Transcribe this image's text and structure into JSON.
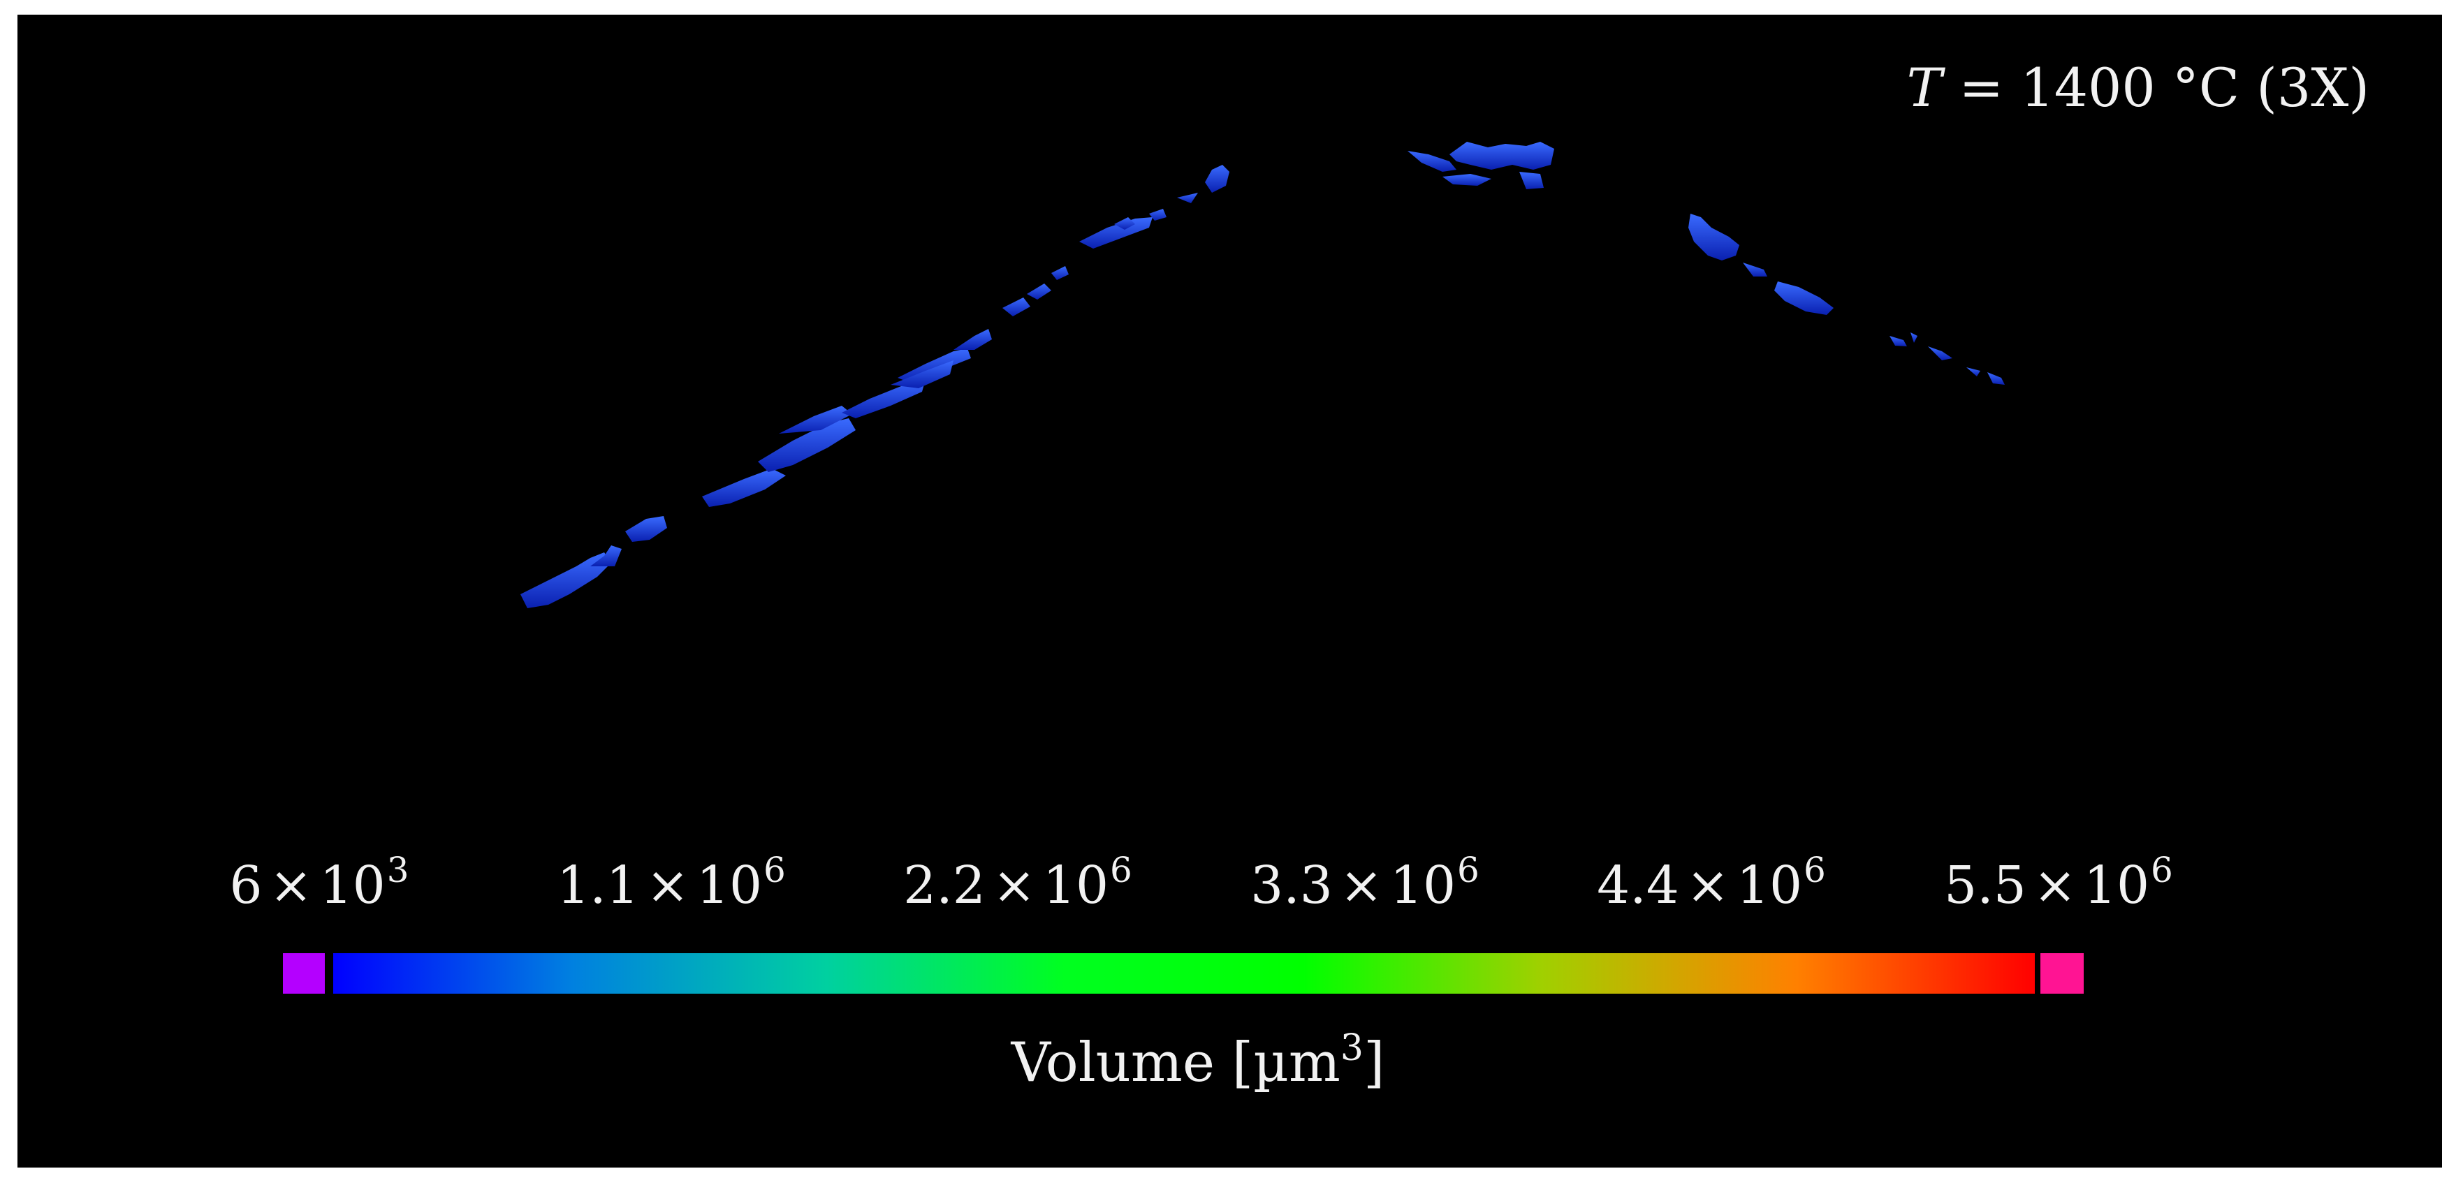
{
  "annotation": {
    "variable": "T",
    "rest": "= 1400 °C (3X)"
  },
  "colorbar": {
    "ticks": [
      {
        "mantissa": "6",
        "exponent": "3"
      },
      {
        "mantissa": "1.1",
        "exponent": "6"
      },
      {
        "mantissa": "2.2",
        "exponent": "6"
      },
      {
        "mantissa": "3.3",
        "exponent": "6"
      },
      {
        "mantissa": "4.4",
        "exponent": "6"
      },
      {
        "mantissa": "5.5",
        "exponent": "6"
      }
    ],
    "times_symbol": "×",
    "base": "10",
    "label_text": "Volume [µm",
    "label_exponent": "3",
    "label_close": "]",
    "underflow_color": "#b400ff",
    "overflow_color": "#ff1493",
    "gradient_stops": [
      "#0000ff",
      "#0080e0",
      "#00d0a0",
      "#00ff20",
      "#00ff00",
      "#a0d000",
      "#ff8000",
      "#ff0000"
    ]
  },
  "pore_color": "#1a40e6"
}
